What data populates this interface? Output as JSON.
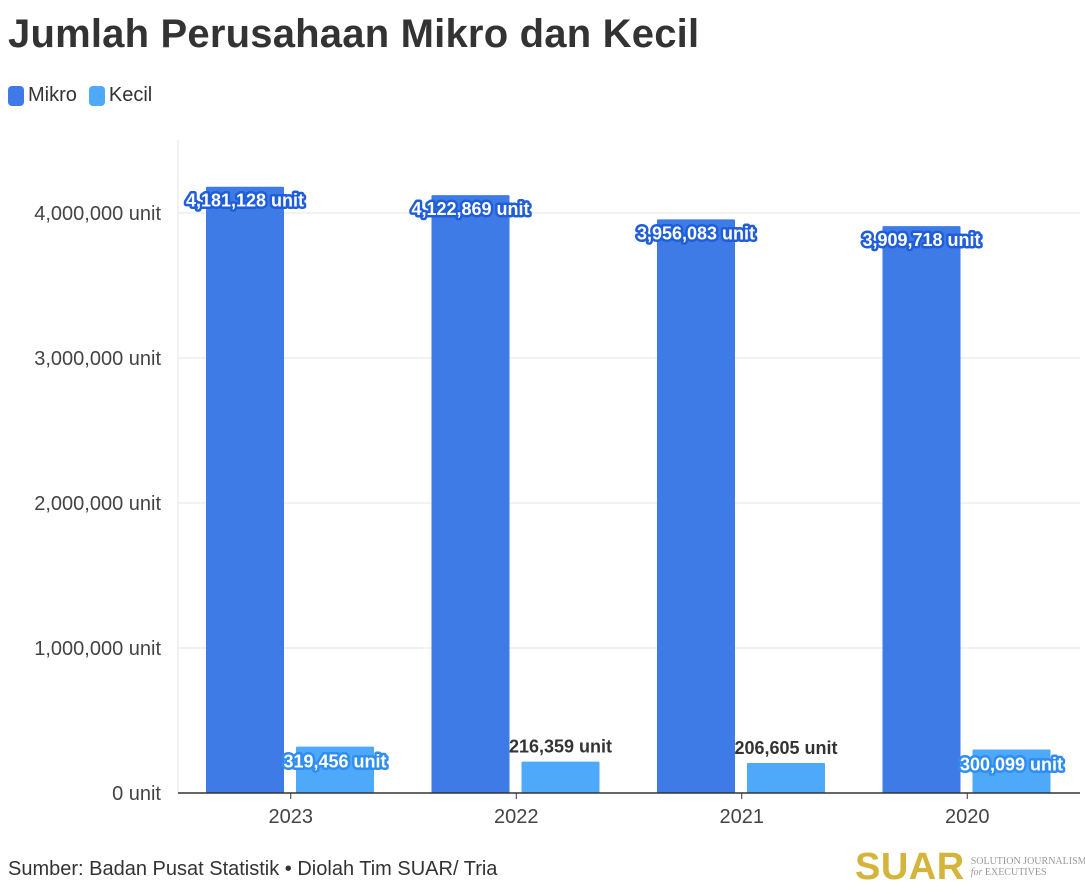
{
  "title": "Jumlah Perusahaan Mikro dan Kecil",
  "legend": [
    {
      "label": "Mikro",
      "color": "#3f7be6"
    },
    {
      "label": "Kecil",
      "color": "#4ea9fb"
    }
  ],
  "footer": {
    "source": "Sumber: Badan Pusat Statistik • Diolah Tim SUAR/ Tria"
  },
  "logo": {
    "mark": "SUAR",
    "tagline_line1": "SOLUTION JOURNALISM",
    "tagline_line2_italic": "for",
    "tagline_line2_rest": "EXECUTIVES"
  },
  "colors": {
    "mikro": "#3f7be6",
    "kecil": "#4ea9fb",
    "label_outline_mikro": "#1f5ed8",
    "label_outline_kecil": "#2f8df0",
    "grid": "#e6e6e6",
    "axis": "#333333"
  },
  "chart_data": {
    "type": "bar",
    "categories": [
      "2023",
      "2022",
      "2021",
      "2020"
    ],
    "series": [
      {
        "name": "Mikro",
        "values": [
          4181128,
          4122869,
          3956083,
          3909718
        ],
        "labels": [
          "4,181,128 unit",
          "4,122,869 unit",
          "3,956,083 unit",
          "3,909,718 unit"
        ]
      },
      {
        "name": "Kecil",
        "values": [
          319456,
          216359,
          206605,
          300099
        ],
        "labels": [
          "319,456 unit",
          "216,359 unit",
          "206,605 unit",
          "300,099 unit"
        ]
      }
    ],
    "yticks": [
      0,
      1000000,
      2000000,
      3000000,
      4000000
    ],
    "ytick_labels": [
      "0 unit",
      "1,000,000 unit",
      "2,000,000 unit",
      "3,000,000 unit",
      "4,000,000 unit"
    ],
    "ylim": [
      0,
      4500000
    ],
    "grid": true,
    "legend_position": "top-left"
  }
}
